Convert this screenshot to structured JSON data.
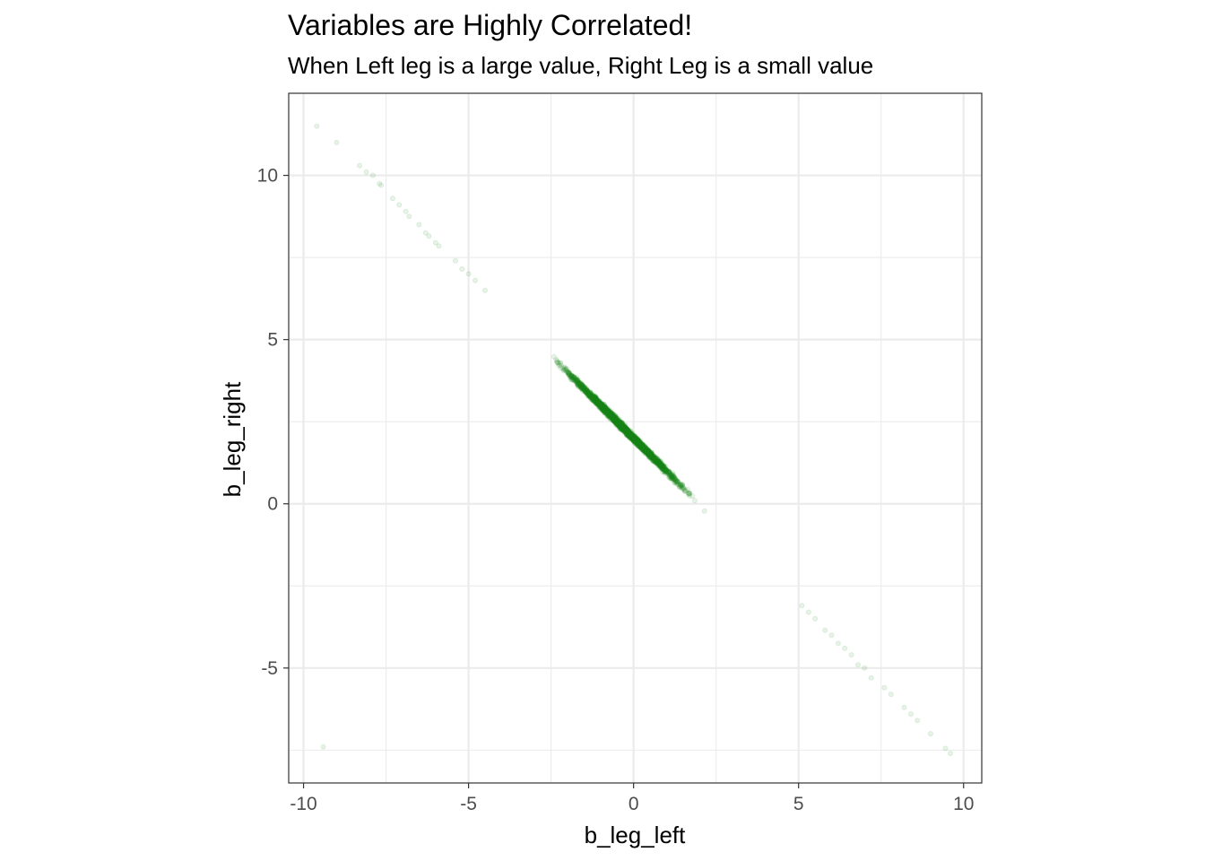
{
  "chart_data": {
    "type": "scatter",
    "title": "Variables are Highly Correlated!",
    "subtitle": "When Left leg is a large value, Right Leg is a small value",
    "xlabel": "b_leg_left",
    "ylabel": "b_leg_right",
    "xlim": [
      -10.45,
      10.55
    ],
    "ylim": [
      -8.5,
      12.5
    ],
    "x_ticks": [
      -10,
      -5,
      0,
      5,
      10
    ],
    "y_ticks": [
      -5,
      0,
      5,
      10
    ],
    "x_tick_labels": [
      "-10",
      "-5",
      "0",
      "5",
      "10"
    ],
    "y_tick_labels": [
      "-5",
      "0",
      "5",
      "10"
    ],
    "grid": true,
    "point_color": "#228B22",
    "point_alpha": 0.1,
    "relationship": {
      "slope": -1.0,
      "intercept": 2.0
    },
    "points": [
      {
        "x": -9.6,
        "y": 11.5
      },
      {
        "x": -9.0,
        "y": 11.0
      },
      {
        "x": -8.3,
        "y": 10.3
      },
      {
        "x": -8.1,
        "y": 10.1
      },
      {
        "x": -7.9,
        "y": 10.0
      },
      {
        "x": -7.7,
        "y": 9.75
      },
      {
        "x": -7.65,
        "y": 9.7
      },
      {
        "x": -7.3,
        "y": 9.3
      },
      {
        "x": -7.1,
        "y": 9.1
      },
      {
        "x": -6.9,
        "y": 8.9
      },
      {
        "x": -6.8,
        "y": 8.75
      },
      {
        "x": -6.5,
        "y": 8.5
      },
      {
        "x": -6.3,
        "y": 8.25
      },
      {
        "x": -6.2,
        "y": 8.15
      },
      {
        "x": -6.0,
        "y": 7.95
      },
      {
        "x": -5.9,
        "y": 7.85
      },
      {
        "x": -5.4,
        "y": 7.4
      },
      {
        "x": -5.2,
        "y": 7.15
      },
      {
        "x": -5.0,
        "y": 7.0
      },
      {
        "x": -4.8,
        "y": 6.8
      },
      {
        "x": -4.5,
        "y": 6.5
      },
      {
        "x": -9.4,
        "y": -7.4
      },
      {
        "x": 9.45,
        "y": -7.45
      },
      {
        "x": 9.6,
        "y": -7.6
      },
      {
        "x": 9.0,
        "y": -7.0
      },
      {
        "x": 8.6,
        "y": -6.6
      },
      {
        "x": 8.4,
        "y": -6.4
      },
      {
        "x": 8.2,
        "y": -6.2
      },
      {
        "x": 7.8,
        "y": -5.8
      },
      {
        "x": 7.6,
        "y": -5.6
      },
      {
        "x": 7.2,
        "y": -5.3
      },
      {
        "x": 7.0,
        "y": -5.0
      },
      {
        "x": 6.8,
        "y": -4.9
      },
      {
        "x": 6.6,
        "y": -4.6
      },
      {
        "x": 6.4,
        "y": -4.4
      },
      {
        "x": 6.2,
        "y": -4.25
      },
      {
        "x": 6.0,
        "y": -4.0
      },
      {
        "x": 5.8,
        "y": -3.85
      },
      {
        "x": 5.5,
        "y": -3.5
      },
      {
        "x": 5.3,
        "y": -3.3
      },
      {
        "x": 5.1,
        "y": -3.1
      }
    ],
    "dense_band": {
      "x_range": [
        -4.5,
        5.0
      ],
      "n_points": 3000,
      "spread": 0.12
    }
  }
}
